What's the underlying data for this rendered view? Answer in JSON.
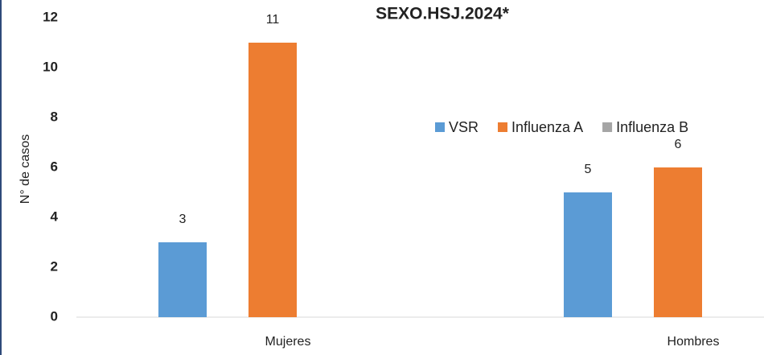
{
  "chart_data": {
    "type": "bar",
    "title": "SEXO.HSJ.2024*",
    "y_axis_label": "N° de casos",
    "categories": [
      "Mujeres",
      "Hombres"
    ],
    "series": [
      {
        "name": "VSR",
        "color": "#5b9bd5",
        "values": [
          3,
          5
        ]
      },
      {
        "name": "Influenza A",
        "color": "#ed7d31",
        "values": [
          11,
          6
        ]
      },
      {
        "name": "Influenza B",
        "color": "#a5a5a5",
        "values": [
          null,
          null
        ]
      }
    ],
    "ylim": [
      0,
      12
    ],
    "yticks": [
      0,
      2,
      4,
      6,
      8,
      10,
      12
    ],
    "grid": false,
    "legend": "right"
  }
}
